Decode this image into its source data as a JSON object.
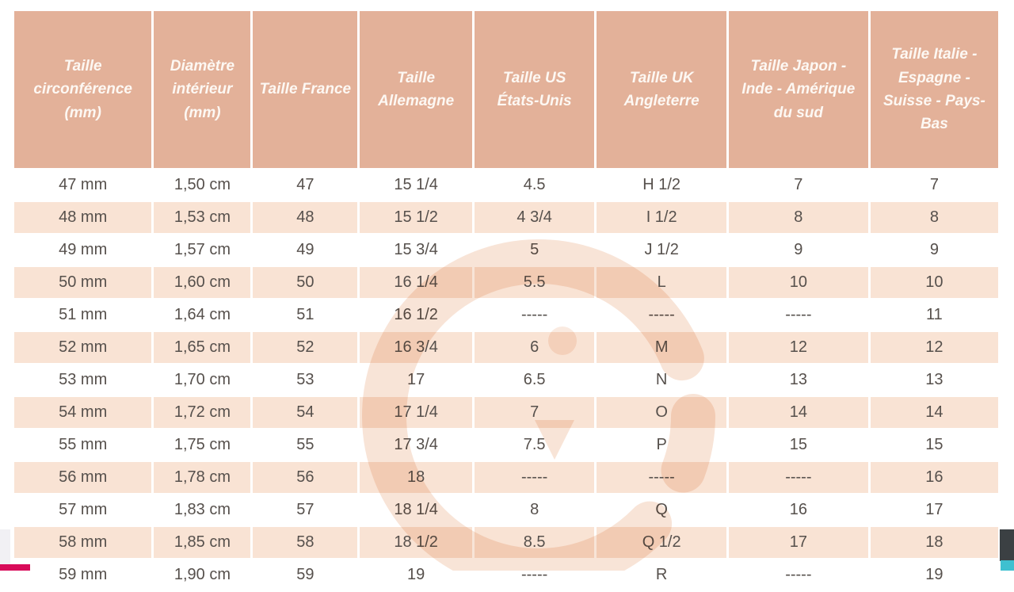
{
  "chart_data": {
    "type": "table",
    "columns": [
      "Taille circonférence (mm)",
      "Diamètre intérieur (mm)",
      "Taille France",
      "Taille Allemagne",
      "Taille US États-Unis",
      "Taille UK Angleterre",
      "Taille Japon - Inde - Amérique du sud",
      "Taille Italie - Espagne - Suisse - Pays-Bas"
    ],
    "rows": [
      [
        "47 mm",
        "1,50 cm",
        "47",
        "15 1/4",
        "4.5",
        "H 1/2",
        "7",
        "7"
      ],
      [
        "48 mm",
        "1,53 cm",
        "48",
        "15 1/2",
        "4 3/4",
        "I 1/2",
        "8",
        "8"
      ],
      [
        "49 mm",
        "1,57 cm",
        "49",
        "15 3/4",
        "5",
        "J 1/2",
        "9",
        "9"
      ],
      [
        "50 mm",
        "1,60 cm",
        "50",
        "16 1/4",
        "5.5",
        "L",
        "10",
        "10"
      ],
      [
        "51 mm",
        "1,64 cm",
        "51",
        "16 1/2",
        "-----",
        "-----",
        "-----",
        "11"
      ],
      [
        "52 mm",
        "1,65 cm",
        "52",
        "16 3/4",
        "6",
        "M",
        "12",
        "12"
      ],
      [
        "53 mm",
        "1,70 cm",
        "53",
        "17",
        "6.5",
        "N",
        "13",
        "13"
      ],
      [
        "54 mm",
        "1,72 cm",
        "54",
        "17 1/4",
        "7",
        "O",
        "14",
        "14"
      ],
      [
        "55 mm",
        "1,75 cm",
        "55",
        "17 3/4",
        "7.5",
        "P",
        "15",
        "15"
      ],
      [
        "56 mm",
        "1,78 cm",
        "56",
        "18",
        "-----",
        "-----",
        "-----",
        "16"
      ],
      [
        "57 mm",
        "1,83 cm",
        "57",
        "18 1/4",
        "8",
        "Q",
        "16",
        "17"
      ],
      [
        "58 mm",
        "1,85 cm",
        "58",
        "18 1/2",
        "8.5",
        "Q 1/2",
        "17",
        "18"
      ],
      [
        "59 mm",
        "1,90 cm",
        "59",
        "19",
        "-----",
        "R",
        "-----",
        "19"
      ]
    ],
    "layout": {
      "striped": true,
      "stripe_rows": "even rows peach, odd rows white",
      "header_rows": 1
    }
  },
  "watermark": {
    "icon": "g-logo-watermark"
  },
  "colors": {
    "header_bg": "#e3b199",
    "row_bg": "#ffffff",
    "row_alt_bg": "#f9e3d4",
    "header_text": "#fdf8f3",
    "cell_text": "#56504c",
    "watermark_peach": "#f3cdb6",
    "edge_crimson": "#d80b59",
    "edge_cyan": "#3fc0d0",
    "edge_dark": "#3b4043",
    "edge_gray": "#f1f0f4"
  }
}
